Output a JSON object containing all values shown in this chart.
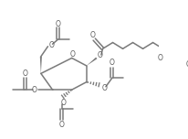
{
  "bg_color": "#ffffff",
  "line_color": "#7a7a7a",
  "lw": 1.1,
  "figsize": [
    2.06,
    1.52
  ],
  "dpi": 100,
  "xlim": [
    0,
    206
  ],
  "ylim": [
    0,
    152
  ]
}
